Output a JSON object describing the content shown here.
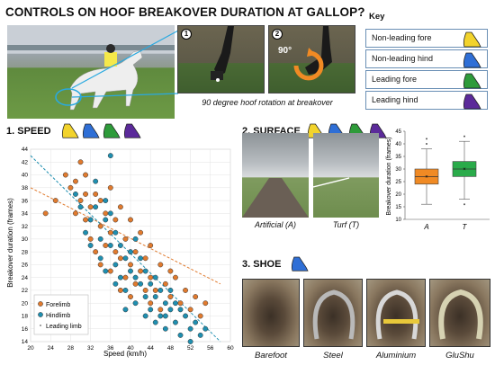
{
  "title": "CONTROLS ON HOOF BREAKOVER DURATION AT GALLOP?",
  "top": {
    "rotation_caption": "90 degree hoof rotation at breakover",
    "panel1_number": "1",
    "panel2_number": "2",
    "angle_label": "90°"
  },
  "key": {
    "title": "Key",
    "items": [
      {
        "label": "Non-leading fore",
        "color": "#f2d32c"
      },
      {
        "label": "Non-leading hind",
        "color": "#2f6fd6"
      },
      {
        "label": "Leading fore",
        "color": "#2e9b3a"
      },
      {
        "label": "Leading hind",
        "color": "#5b2a9a"
      }
    ]
  },
  "speed": {
    "heading": "1. SPEED",
    "icon_colors": [
      "#f2d32c",
      "#2f6fd6",
      "#2e9b3a",
      "#5b2a9a"
    ]
  },
  "surface": {
    "heading": "2. SURFACE",
    "icon_colors": [
      "#f2d32c",
      "#2f6fd6",
      "#2e9b3a",
      "#5b2a9a"
    ],
    "captions": [
      "Artificial (A)",
      "Turf (T)"
    ]
  },
  "shoe": {
    "heading": "3. SHOE",
    "icon_color": "#2f6fd6",
    "captions": [
      "Barefoot",
      "Steel",
      "Aluminium",
      "GluShu"
    ]
  },
  "chart_data": [
    {
      "type": "scatter",
      "xlabel": "Speed (km/h)",
      "ylabel": "Breakover duration (frames)",
      "xlim": [
        20,
        60
      ],
      "ylim": [
        14,
        44
      ],
      "xticks": [
        20,
        24,
        28,
        32,
        36,
        40,
        44,
        48,
        52,
        56,
        60
      ],
      "yticks": [
        14,
        16,
        18,
        20,
        22,
        24,
        26,
        28,
        30,
        32,
        34,
        36,
        38,
        40,
        42,
        44
      ],
      "grid": true,
      "legend": {
        "placement": "bottom-left",
        "entries": [
          {
            "label": "Forelimb",
            "color": "#e07a2e"
          },
          {
            "label": "Hindlimb",
            "color": "#1f8fb0"
          },
          {
            "label": "Leading limb",
            "color": "#888888"
          }
        ]
      },
      "series": [
        {
          "name": "Forelimb",
          "color": "#e07a2e",
          "points": [
            [
              23,
              34
            ],
            [
              25,
              36
            ],
            [
              27,
              40
            ],
            [
              28,
              38
            ],
            [
              29,
              34
            ],
            [
              30,
              42
            ],
            [
              30,
              36
            ],
            [
              31,
              33
            ],
            [
              31,
              40
            ],
            [
              32,
              30
            ],
            [
              32,
              35
            ],
            [
              33,
              37
            ],
            [
              33,
              28
            ],
            [
              34,
              32
            ],
            [
              34,
              26
            ],
            [
              35,
              29
            ],
            [
              35,
              34
            ],
            [
              36,
              31
            ],
            [
              36,
              25
            ],
            [
              37,
              28
            ],
            [
              37,
              33
            ],
            [
              38,
              27
            ],
            [
              38,
              22
            ],
            [
              39,
              30
            ],
            [
              39,
              24
            ],
            [
              40,
              26
            ],
            [
              40,
              21
            ],
            [
              41,
              28
            ],
            [
              41,
              23
            ],
            [
              42,
              25
            ],
            [
              43,
              22
            ],
            [
              43,
              27
            ],
            [
              44,
              20
            ],
            [
              44,
              24
            ],
            [
              45,
              22
            ],
            [
              46,
              26
            ],
            [
              46,
              19
            ],
            [
              47,
              23
            ],
            [
              48,
              21
            ],
            [
              49,
              24
            ],
            [
              50,
              20
            ],
            [
              51,
              22
            ],
            [
              52,
              19
            ],
            [
              53,
              21
            ],
            [
              54,
              18
            ],
            [
              55,
              20
            ],
            [
              38,
              35
            ],
            [
              36,
              38
            ],
            [
              34,
              36
            ],
            [
              42,
              31
            ],
            [
              44,
              29
            ],
            [
              48,
              25
            ],
            [
              31,
              37
            ],
            [
              29,
              39
            ],
            [
              40,
              33
            ]
          ]
        },
        {
          "name": "Hindlimb",
          "color": "#1f8fb0",
          "points": [
            [
              29,
              37
            ],
            [
              30,
              35
            ],
            [
              31,
              31
            ],
            [
              32,
              33
            ],
            [
              32,
              29
            ],
            [
              33,
              35
            ],
            [
              34,
              30
            ],
            [
              34,
              27
            ],
            [
              35,
              33
            ],
            [
              35,
              25
            ],
            [
              36,
              43
            ],
            [
              36,
              29
            ],
            [
              37,
              31
            ],
            [
              37,
              26
            ],
            [
              38,
              29
            ],
            [
              38,
              24
            ],
            [
              39,
              27
            ],
            [
              39,
              22
            ],
            [
              40,
              28
            ],
            [
              40,
              25
            ],
            [
              41,
              24
            ],
            [
              41,
              20
            ],
            [
              42,
              27
            ],
            [
              42,
              23
            ],
            [
              43,
              21
            ],
            [
              43,
              18
            ],
            [
              44,
              23
            ],
            [
              44,
              19
            ],
            [
              45,
              21
            ],
            [
              45,
              17
            ],
            [
              46,
              22
            ],
            [
              46,
              18
            ],
            [
              47,
              20
            ],
            [
              47,
              16
            ],
            [
              48,
              19
            ],
            [
              48,
              22
            ],
            [
              49,
              17
            ],
            [
              50,
              19
            ],
            [
              50,
              15
            ],
            [
              51,
              18
            ],
            [
              52,
              16
            ],
            [
              53,
              17
            ],
            [
              54,
              15
            ],
            [
              55,
              16
            ],
            [
              33,
              39
            ],
            [
              35,
              36
            ],
            [
              36,
              34
            ],
            [
              37,
              23
            ],
            [
              39,
              19
            ],
            [
              41,
              30
            ],
            [
              43,
              25
            ],
            [
              45,
              24
            ],
            [
              47,
              18
            ],
            [
              49,
              20
            ],
            [
              52,
              14
            ]
          ]
        }
      ],
      "trendlines": [
        {
          "name": "Forelimb",
          "from": [
            20,
            38
          ],
          "to": [
            58,
            23
          ]
        },
        {
          "name": "Hindlimb",
          "from": [
            20,
            43
          ],
          "to": [
            58,
            14
          ]
        }
      ]
    },
    {
      "type": "box",
      "ylabel": "Breakover duration (frames)",
      "ylim": [
        10,
        45
      ],
      "yticks": [
        10,
        15,
        20,
        25,
        30,
        35,
        40,
        45
      ],
      "categories": [
        "A",
        "T"
      ],
      "boxes": [
        {
          "category": "A",
          "color": "#f08a24",
          "whisker_low": 16,
          "q1": 24,
          "median": 27,
          "q3": 30,
          "whisker_high": 38,
          "mean": 27,
          "outliers": [
            40,
            42
          ]
        },
        {
          "category": "T",
          "color": "#2aab4a",
          "whisker_low": 18,
          "q1": 27,
          "median": 30,
          "q3": 33,
          "whisker_high": 41,
          "mean": 30,
          "outliers": [
            16,
            43
          ]
        }
      ]
    }
  ]
}
